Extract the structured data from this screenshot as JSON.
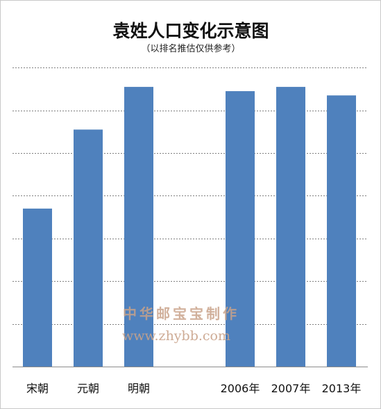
{
  "chart_data": {
    "type": "bar",
    "title": "袁姓人口变化示意图",
    "subtitle": "（以排名推估仅供参考）",
    "categories": [
      "宋朝",
      "元朝",
      "明朝",
      "",
      "2006年",
      "2007年",
      "2013年"
    ],
    "values": [
      37,
      55.5,
      65.5,
      null,
      64.5,
      65.5,
      63.5
    ],
    "ylim": [
      0,
      72
    ],
    "gridlines": [
      0,
      10,
      20,
      30,
      40,
      50,
      60,
      70
    ],
    "grid": true,
    "legend": "none",
    "bar_color": "#4f81bd"
  },
  "watermark": {
    "line1": "中华邮宝宝制作",
    "line2": "www.zhybb.com"
  }
}
